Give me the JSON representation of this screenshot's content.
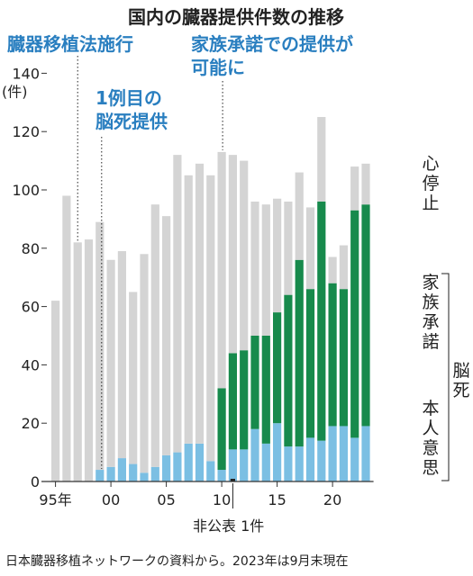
{
  "chart_data": {
    "type": "bar",
    "stacked": true,
    "title": "国内の臓器提供件数の推移",
    "y_unit_label": "(件)",
    "ylim": [
      0,
      140
    ],
    "yticks": [
      0,
      20,
      40,
      60,
      80,
      100,
      120,
      140
    ],
    "x_ticks": [
      {
        "year": 1995,
        "label": "95年"
      },
      {
        "year": 2000,
        "label": "00"
      },
      {
        "year": 2005,
        "label": "05"
      },
      {
        "year": 2010,
        "label": "10"
      },
      {
        "year": 2015,
        "label": "15"
      },
      {
        "year": 2020,
        "label": "20"
      }
    ],
    "years": [
      1995,
      1996,
      1997,
      1998,
      1999,
      2000,
      2001,
      2002,
      2003,
      2004,
      2005,
      2006,
      2007,
      2008,
      2009,
      2010,
      2011,
      2012,
      2013,
      2014,
      2015,
      2016,
      2017,
      2018,
      2019,
      2020,
      2021,
      2022,
      2023
    ],
    "series": [
      {
        "name": "本人意思",
        "color": "#7bbfe3",
        "values": [
          0,
          0,
          0,
          0,
          4,
          5,
          8,
          6,
          3,
          5,
          9,
          10,
          13,
          13,
          7,
          4,
          11,
          11,
          18,
          13,
          20,
          12,
          12,
          15,
          14,
          19,
          19,
          15,
          19
        ]
      },
      {
        "name": "家族承諾",
        "color": "#178a4c",
        "values": [
          0,
          0,
          0,
          0,
          0,
          0,
          0,
          0,
          0,
          0,
          0,
          0,
          0,
          0,
          0,
          28,
          33,
          34,
          32,
          37,
          38,
          52,
          64,
          51,
          82,
          49,
          47,
          78,
          76
        ]
      },
      {
        "name": "心停止",
        "color": "#d4d4d4",
        "values": [
          62,
          98,
          82,
          83,
          85,
          71,
          71,
          59,
          75,
          90,
          82,
          102,
          92,
          96,
          98,
          81,
          68,
          65,
          46,
          45,
          39,
          32,
          30,
          28,
          29,
          9,
          15,
          15,
          14
        ]
      }
    ],
    "group_label": "脳死",
    "annotations": [
      {
        "text": "臓器移植法施行",
        "year": 1997
      },
      {
        "text_lines": [
          "1例目の",
          "脳死提供"
        ],
        "year": 1999
      },
      {
        "text_lines": [
          "家族承諾での提供が",
          "可能に"
        ],
        "year": 2010
      }
    ],
    "note": "非公表 1件",
    "source": "日本臓器移植ネットワークの資料から。2023年は9月末現在"
  }
}
